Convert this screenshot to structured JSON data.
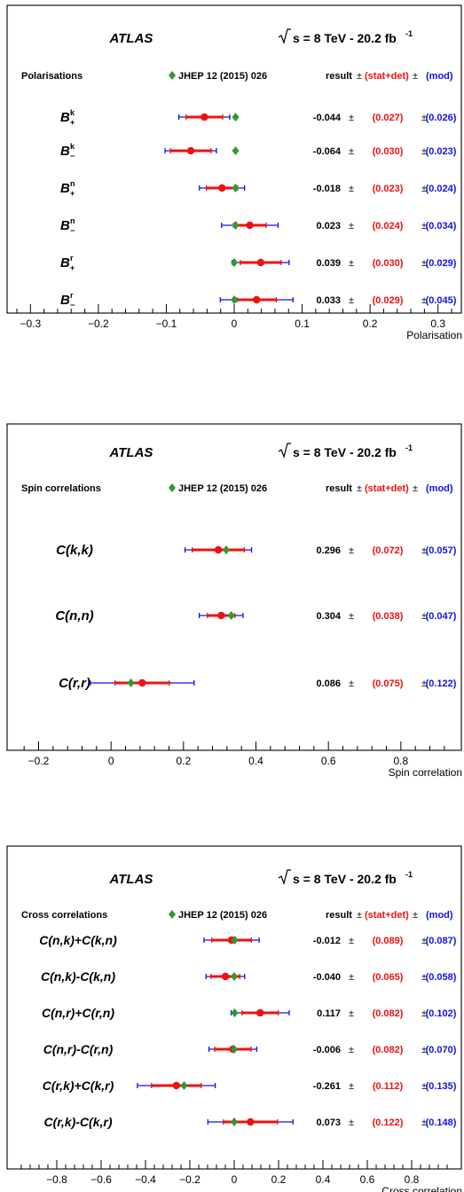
{
  "chart_data": [
    {
      "type": "scatter",
      "panel": "polarisations",
      "experiment": "ATLAS",
      "energy_label": "s = 8 TeV - 20.2 fb",
      "energy_sup": "-1",
      "section_title": "Polarisations",
      "reference_label": "JHEP 12 (2015) 026",
      "header_result": "result",
      "header_pm": "±",
      "header_stat": "(stat+det)",
      "header_mod": "(mod)",
      "xlabel": "Polarisation",
      "xlim": [
        -0.32,
        0.32
      ],
      "xticks": [
        "−0.3",
        "−0.2",
        "−0.1",
        "0",
        "0.1",
        "0.2",
        "0.3"
      ],
      "xtick_values": [
        -0.3,
        -0.2,
        -0.1,
        0,
        0.1,
        0.2,
        0.3
      ],
      "colors": {
        "result": "#ee1111",
        "stat": "#ee1111",
        "mod": "#1111ee",
        "prediction": "#2e9a2e"
      },
      "rows": [
        {
          "base": "B",
          "sup": "k",
          "sub": "+",
          "value": -0.044,
          "stat": 0.027,
          "mod": 0.026,
          "prediction": 0.002,
          "result_text": "-0.044",
          "stat_text": "(0.027)",
          "mod_text": "(0.026)"
        },
        {
          "base": "B",
          "sup": "k",
          "sub": "−",
          "value": -0.064,
          "stat": 0.03,
          "mod": 0.023,
          "prediction": 0.002,
          "result_text": "-0.064",
          "stat_text": "(0.030)",
          "mod_text": "(0.023)"
        },
        {
          "base": "B",
          "sup": "n",
          "sub": "+",
          "value": -0.018,
          "stat": 0.023,
          "mod": 0.024,
          "prediction": 0.002,
          "result_text": "-0.018",
          "stat_text": "(0.023)",
          "mod_text": "(0.024)"
        },
        {
          "base": "B",
          "sup": "n",
          "sub": "−",
          "value": 0.023,
          "stat": 0.024,
          "mod": 0.034,
          "prediction": 0.002,
          "result_text": "0.023",
          "stat_text": "(0.024)",
          "mod_text": "(0.034)"
        },
        {
          "base": "B",
          "sup": "r",
          "sub": "+",
          "value": 0.039,
          "stat": 0.03,
          "mod": 0.029,
          "prediction": 0.0,
          "result_text": "0.039",
          "stat_text": "(0.030)",
          "mod_text": "(0.029)"
        },
        {
          "base": "B",
          "sup": "r",
          "sub": "−",
          "value": 0.033,
          "stat": 0.029,
          "mod": 0.045,
          "prediction": 0.0,
          "result_text": "0.033",
          "stat_text": "(0.029)",
          "mod_text": "(0.045)"
        }
      ]
    },
    {
      "type": "scatter",
      "panel": "spin-correlations",
      "experiment": "ATLAS",
      "energy_label": "s = 8 TeV - 20.2 fb",
      "energy_sup": "-1",
      "section_title": "Spin correlations",
      "reference_label": "JHEP 12 (2015) 026",
      "header_result": "result",
      "header_pm": "±",
      "header_stat": "(stat+det)",
      "header_mod": "(mod)",
      "xlabel": "Spin correlation",
      "xlim": [
        -0.26,
        0.94
      ],
      "xticks": [
        "−0.2",
        "0",
        "0.2",
        "0.4",
        "0.6",
        "0.8"
      ],
      "xtick_values": [
        -0.2,
        0,
        0.2,
        0.4,
        0.6,
        0.8
      ],
      "colors": {
        "result": "#ee1111",
        "stat": "#ee1111",
        "mod": "#1111ee",
        "prediction": "#2e9a2e"
      },
      "rows": [
        {
          "label": "C(k,k)",
          "value": 0.296,
          "stat": 0.072,
          "mod": 0.057,
          "prediction": 0.318,
          "result_text": "0.296",
          "stat_text": "(0.072)",
          "mod_text": "(0.057)"
        },
        {
          "label": "C(n,n)",
          "value": 0.304,
          "stat": 0.038,
          "mod": 0.047,
          "prediction": 0.332,
          "result_text": "0.304",
          "stat_text": "(0.038)",
          "mod_text": "(0.047)"
        },
        {
          "label": "C(r,r)",
          "value": 0.086,
          "stat": 0.075,
          "mod": 0.122,
          "prediction": 0.055,
          "result_text": "0.086",
          "stat_text": "(0.075)",
          "mod_text": "(0.122)"
        }
      ]
    },
    {
      "type": "scatter",
      "panel": "cross-correlations",
      "experiment": "ATLAS",
      "energy_label": "s = 8 TeV - 20.2 fb",
      "energy_sup": "-1",
      "section_title": "Cross correlations",
      "reference_label": "JHEP 12 (2015) 026",
      "header_result": "result",
      "header_pm": "±",
      "header_stat": "(stat+det)",
      "header_mod": "(mod)",
      "xlabel": "Cross correlation",
      "xlim": [
        -0.98,
        0.98
      ],
      "xticks": [
        "−0.8",
        "−0.6",
        "−0.4",
        "−0.2",
        "0",
        "0.2",
        "0.4",
        "0.6",
        "0.8"
      ],
      "xtick_values": [
        -0.8,
        -0.6,
        -0.4,
        -0.2,
        0,
        0.2,
        0.4,
        0.6,
        0.8
      ],
      "colors": {
        "result": "#ee1111",
        "stat": "#ee1111",
        "mod": "#1111ee",
        "prediction": "#2e9a2e"
      },
      "rows": [
        {
          "label": "C(n,k)+C(k,n)",
          "value": -0.012,
          "stat": 0.089,
          "mod": 0.087,
          "prediction": 0.002,
          "result_text": "-0.012",
          "stat_text": "(0.089)",
          "mod_text": "(0.087)"
        },
        {
          "label": "C(n,k)-C(k,n)",
          "value": -0.04,
          "stat": 0.065,
          "mod": 0.058,
          "prediction": 0.0,
          "result_text": "-0.040",
          "stat_text": "(0.065)",
          "mod_text": "(0.058)"
        },
        {
          "label": "C(n,r)+C(r,n)",
          "value": 0.117,
          "stat": 0.082,
          "mod": 0.102,
          "prediction": 0.002,
          "result_text": "0.117",
          "stat_text": "(0.082)",
          "mod_text": "(0.102)"
        },
        {
          "label": "C(n,r)-C(r,n)",
          "value": -0.006,
          "stat": 0.082,
          "mod": 0.07,
          "prediction": 0.0,
          "result_text": "-0.006",
          "stat_text": "(0.082)",
          "mod_text": "(0.070)"
        },
        {
          "label": "C(r,k)+C(k,r)",
          "value": -0.261,
          "stat": 0.112,
          "mod": 0.135,
          "prediction": -0.226,
          "result_text": "-0.261",
          "stat_text": "(0.112)",
          "mod_text": "(0.135)"
        },
        {
          "label": "C(r,k)-C(k,r)",
          "value": 0.073,
          "stat": 0.122,
          "mod": 0.148,
          "prediction": 0.0,
          "result_text": "0.073",
          "stat_text": "(0.122)",
          "mod_text": "(0.148)"
        }
      ]
    }
  ]
}
